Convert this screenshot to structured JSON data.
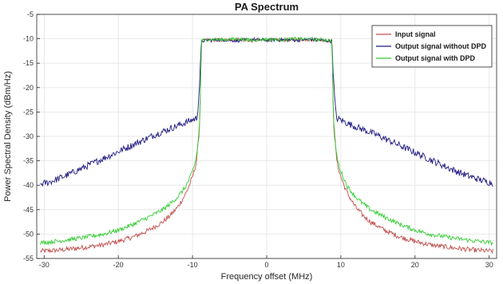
{
  "chart_data": {
    "type": "line",
    "title": "PA Spectrum",
    "xlabel": "Frequency offset (MHz)",
    "ylabel": "Power Spectral Density (dBm/Hz)",
    "xlim": [
      -31,
      31
    ],
    "ylim": [
      -55,
      -5
    ],
    "xticks": [
      -30,
      -20,
      -10,
      0,
      10,
      20,
      30
    ],
    "yticks": [
      -55,
      -50,
      -45,
      -40,
      -35,
      -30,
      -25,
      -20,
      -15,
      -10,
      -5
    ],
    "grid": true,
    "legend_position": "top-right",
    "series": [
      {
        "name": "Input signal",
        "color": "#c0504d",
        "x": [
          -30.5,
          -28,
          -25,
          -22,
          -20,
          -18,
          -16,
          -14,
          -13,
          -12,
          -11,
          -10.5,
          -10,
          -9.5,
          -9.2,
          -9.0,
          -8.9,
          -8.8,
          -8,
          -6,
          -4,
          -2,
          0,
          2,
          4,
          6,
          8,
          8.8,
          8.9,
          9.0,
          9.2,
          9.5,
          10,
          10.5,
          11,
          12,
          13,
          14,
          16,
          18,
          20,
          22,
          25,
          28,
          30.5
        ],
        "y": [
          -53.5,
          -53.3,
          -52.8,
          -52.2,
          -51.5,
          -50.6,
          -49.3,
          -47.5,
          -46.2,
          -44.5,
          -42.0,
          -40.3,
          -38.3,
          -35.5,
          -31.0,
          -26.5,
          -18.0,
          -10.5,
          -10.2,
          -10.3,
          -10.1,
          -10.4,
          -10.2,
          -10.3,
          -10.1,
          -10.2,
          -10.3,
          -10.5,
          -18.0,
          -26.5,
          -31.0,
          -35.5,
          -38.3,
          -40.3,
          -42.0,
          -44.5,
          -46.2,
          -47.5,
          -49.3,
          -50.6,
          -51.5,
          -52.2,
          -52.8,
          -53.3,
          -53.5
        ]
      },
      {
        "name": "Output signal without DPD",
        "color": "#1f1a80",
        "x": [
          -30.5,
          -29,
          -27,
          -25,
          -23,
          -21,
          -19,
          -17,
          -15,
          -13,
          -11,
          -10,
          -9.4,
          -9.2,
          -9.0,
          -8.8,
          -8,
          -6,
          -4,
          -2,
          0,
          2,
          4,
          6,
          8,
          8.8,
          9.0,
          9.2,
          9.4,
          10,
          11,
          13,
          15,
          17,
          19,
          21,
          23,
          25,
          27,
          29,
          30.5
        ],
        "y": [
          -39.8,
          -39.2,
          -38.0,
          -36.6,
          -35.2,
          -33.8,
          -32.4,
          -31.0,
          -29.6,
          -28.4,
          -27.2,
          -26.6,
          -26.3,
          -23.0,
          -18.0,
          -10.5,
          -10.3,
          -10.2,
          -10.4,
          -10.1,
          -10.3,
          -10.2,
          -10.3,
          -10.1,
          -10.4,
          -10.5,
          -18.0,
          -23.0,
          -26.3,
          -26.6,
          -27.4,
          -28.6,
          -29.8,
          -31.2,
          -32.6,
          -34.0,
          -35.4,
          -36.8,
          -38.0,
          -39.0,
          -39.6
        ]
      },
      {
        "name": "Output signal with DPD",
        "color": "#33cc33",
        "x": [
          -30.5,
          -28,
          -25,
          -22,
          -20,
          -18,
          -16,
          -14,
          -13,
          -12,
          -11,
          -10.5,
          -10,
          -9.5,
          -9.2,
          -9.0,
          -8.9,
          -8.8,
          -8,
          -6,
          -4,
          -2,
          0,
          2,
          4,
          6,
          8,
          8.8,
          8.9,
          9.0,
          9.2,
          9.5,
          10,
          10.5,
          11,
          12,
          13,
          14,
          16,
          18,
          20,
          22,
          25,
          28,
          30.5
        ],
        "y": [
          -51.8,
          -51.4,
          -50.8,
          -50.0,
          -49.2,
          -48.0,
          -46.6,
          -45.0,
          -43.8,
          -42.4,
          -40.5,
          -39.0,
          -37.2,
          -34.5,
          -30.5,
          -26.0,
          -18.0,
          -10.4,
          -10.1,
          -10.2,
          -10.0,
          -10.3,
          -10.1,
          -10.2,
          -10.0,
          -10.1,
          -10.2,
          -10.4,
          -18.0,
          -26.0,
          -30.5,
          -34.5,
          -37.2,
          -39.0,
          -40.5,
          -42.4,
          -43.8,
          -45.0,
          -46.6,
          -48.0,
          -49.2,
          -50.0,
          -50.8,
          -51.4,
          -51.8
        ]
      }
    ]
  }
}
